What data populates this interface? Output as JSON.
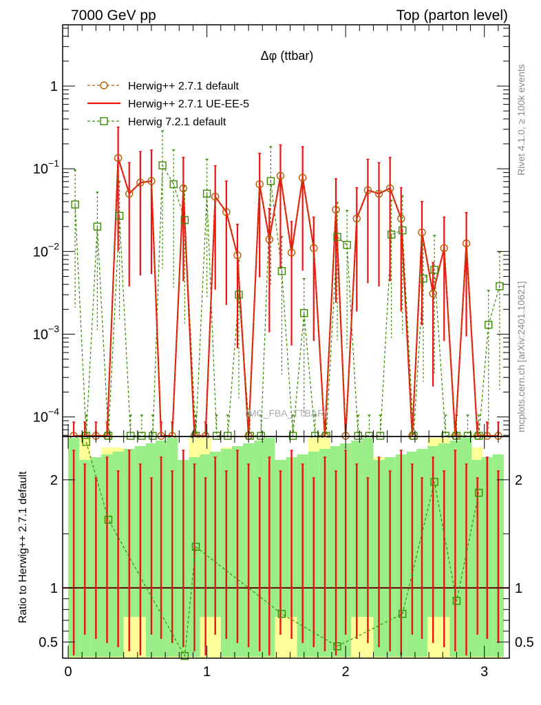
{
  "header": {
    "left_title": "7000 GeV pp",
    "right_title": "Top (parton level)"
  },
  "side_labels": {
    "rivet": "Rivet 4.1.0, ≥ 100k events",
    "mcplots": "mcplots.cern.ch [arXiv:2401.10621]"
  },
  "watermark": "(MC_FBA_TTBAR)",
  "chart_data": [
    {
      "type": "line",
      "title": "Δφ (ttbar)",
      "yscale": "log",
      "xlim": [
        -0.04,
        3.18
      ],
      "ylim": [
        5.8e-05,
        5.5
      ],
      "legend_position": "top-left",
      "y_tick_labels": [
        {
          "value": 1,
          "base": "1",
          "exp": ""
        },
        {
          "value": 0.1,
          "base": "10",
          "exp": "−1"
        },
        {
          "value": 0.01,
          "base": "10",
          "exp": "−2"
        },
        {
          "value": 0.001,
          "base": "10",
          "exp": "−3"
        },
        {
          "value": 0.0001,
          "base": "10",
          "exp": "−4"
        }
      ],
      "series": [
        {
          "name": "Herwig++ 2.7.1 default",
          "color": "#b35a00",
          "style": "dashed",
          "marker": "circle",
          "x": [
            0.04,
            0.12,
            0.2,
            0.28,
            0.36,
            0.44,
            0.52,
            0.6,
            0.67,
            0.75,
            0.83,
            0.91,
            0.99,
            1.06,
            1.14,
            1.22,
            1.3,
            1.38,
            1.45,
            1.53,
            1.61,
            1.69,
            1.77,
            1.85,
            1.93,
            2.0,
            2.08,
            2.16,
            2.24,
            2.32,
            2.4,
            2.48,
            2.55,
            2.63,
            2.71,
            2.79,
            2.87,
            2.95,
            3.02,
            3.1
          ],
          "y": [
            0,
            0,
            0,
            0,
            0.135,
            0.05,
            0.068,
            0.071,
            0,
            0,
            0.058,
            0,
            0,
            0.046,
            0.03,
            0.009,
            0,
            0.065,
            0.014,
            0.082,
            0.0097,
            0.078,
            0.011,
            0,
            0.032,
            0,
            0.025,
            0.055,
            0.05,
            0.058,
            0.025,
            0,
            0.017,
            0.0031,
            0.011,
            0,
            0.0125,
            0,
            0,
            0
          ]
        },
        {
          "name": "Herwig++ 2.7.1 UE-EE-5",
          "color": "#ee1111",
          "style": "solid",
          "marker": "none",
          "x": [
            0.04,
            0.12,
            0.2,
            0.28,
            0.36,
            0.44,
            0.52,
            0.6,
            0.67,
            0.75,
            0.83,
            0.91,
            0.99,
            1.06,
            1.14,
            1.22,
            1.3,
            1.38,
            1.45,
            1.53,
            1.61,
            1.69,
            1.77,
            1.85,
            1.93,
            2.0,
            2.08,
            2.16,
            2.24,
            2.32,
            2.4,
            2.48,
            2.55,
            2.63,
            2.71,
            2.79,
            2.87,
            2.95,
            3.02,
            3.1
          ],
          "y": [
            0,
            0,
            0,
            0,
            0.135,
            0.05,
            0.068,
            0.071,
            0,
            0,
            0.058,
            0,
            0,
            0.046,
            0.03,
            0.009,
            0,
            0.065,
            0.014,
            0.082,
            0.0097,
            0.078,
            0.011,
            0,
            0.032,
            0,
            0.025,
            0.055,
            0.05,
            0.058,
            0.025,
            0,
            0.017,
            0.0031,
            0.011,
            0,
            0.0125,
            0,
            0,
            0
          ]
        },
        {
          "name": "Herwig 7.2.1 default",
          "color": "#3a8a00",
          "style": "dashed",
          "marker": "square",
          "x": [
            0.04,
            0.12,
            0.2,
            0.28,
            0.36,
            0.44,
            0.52,
            0.6,
            0.67,
            0.75,
            0.83,
            0.91,
            0.99,
            1.06,
            1.14,
            1.22,
            1.3,
            1.38,
            1.45,
            1.53,
            1.61,
            1.69,
            1.77,
            1.85,
            1.93,
            2.0,
            2.08,
            2.16,
            2.24,
            2.32,
            2.4,
            2.48,
            2.55,
            2.63,
            2.71,
            2.79,
            2.87,
            2.95,
            3.02,
            3.1
          ],
          "y": [
            0.037,
            0,
            0.02,
            0,
            0.027,
            0,
            0,
            0,
            0.11,
            0.065,
            0.024,
            0,
            0.05,
            0,
            0,
            0.003,
            0,
            0,
            0.071,
            0.0058,
            0,
            0.0018,
            0,
            0,
            0.015,
            0.012,
            0,
            0,
            0,
            0.016,
            0.018,
            0,
            0.0047,
            0.006,
            0,
            0,
            0,
            0,
            0.0013,
            0.0038
          ]
        }
      ]
    },
    {
      "type": "line",
      "ylabel": "Ratio to Herwig++ 2.7.1 default",
      "xlim": [
        -0.04,
        3.18
      ],
      "ylim": [
        0.35,
        2.4
      ],
      "x_tick_labels": [
        "0",
        "1",
        "2",
        "3"
      ],
      "y_tick_labels": [
        "0.5",
        "1",
        "2"
      ],
      "reference_line": 1,
      "bands": {
        "yellow_color": "#ffff99",
        "green_color": "#99ee88"
      },
      "series": [
        {
          "name": "Herwig 7.2.1 default",
          "x": [
            0.12,
            0.28,
            0.83,
            0.91,
            1.53,
            1.93,
            2.4,
            2.63,
            2.79,
            2.95
          ],
          "y": [
            2.35,
            1.63,
            0.37,
            1.38,
            0.76,
            0.46,
            0.76,
            1.98,
            0.88,
            1.88
          ]
        }
      ]
    }
  ]
}
